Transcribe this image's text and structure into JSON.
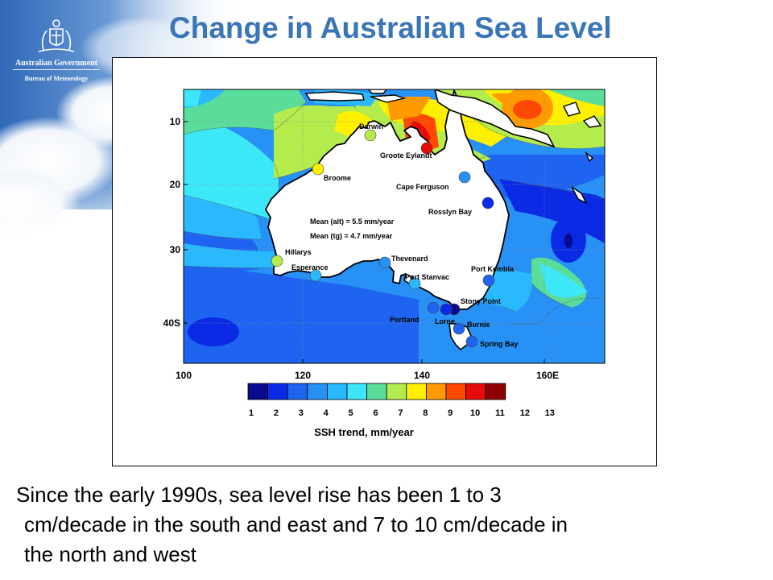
{
  "header": {
    "title": "Change in Australian Sea Level",
    "logo": {
      "line1": "Australian Government",
      "line2": "Bureau of Meteorology",
      "icon": "coat-of-arms-icon"
    }
  },
  "map": {
    "lon_labels": [
      "100",
      "120",
      "140",
      "160E"
    ],
    "lat_labels": [
      "10",
      "20",
      "30",
      "40S"
    ],
    "stats": [
      "Mean (alt) =  5.5 mm/year",
      "Mean (tg) =  4.7 mm/year"
    ],
    "stations": [
      {
        "name": "Darwin",
        "trend": 8
      },
      {
        "name": "Groote Eylandt",
        "trend": 12
      },
      {
        "name": "Broome",
        "trend": 9
      },
      {
        "name": "Cape Ferguson",
        "trend": 4
      },
      {
        "name": "Rosslyn Bay",
        "trend": 2
      },
      {
        "name": "Hillarys",
        "trend": 8
      },
      {
        "name": "Esperance",
        "trend": 5
      },
      {
        "name": "Thevenard",
        "trend": 4
      },
      {
        "name": "Port Stanvac",
        "trend": 5
      },
      {
        "name": "Port Kembla",
        "trend": 3
      },
      {
        "name": "Stony Point",
        "trend": 1
      },
      {
        "name": "Portland",
        "trend": 3
      },
      {
        "name": "Lorne",
        "trend": 2
      },
      {
        "name": "Burnie",
        "trend": 3
      },
      {
        "name": "Spring Bay",
        "trend": 3
      }
    ]
  },
  "colorbar": {
    "ticks": [
      "1",
      "2",
      "3",
      "4",
      "5",
      "6",
      "7",
      "8",
      "9",
      "10",
      "11",
      "12",
      "13"
    ],
    "colors": [
      "#0a0a8c",
      "#0a2ae6",
      "#1e64f0",
      "#2891f5",
      "#2ab8ff",
      "#3ce8f8",
      "#5adc9a",
      "#b4ec4e",
      "#fff000",
      "#ff9a00",
      "#ff4800",
      "#e60a0a",
      "#8c0000"
    ],
    "label": "SSH trend, mm/year"
  },
  "caption": {
    "line1": "Since the early 1990s, sea level rise has been 1 to 3",
    "line2": "cm/decade in the south and east and 7 to 10 cm/decade in",
    "line3": "the north and west"
  }
}
